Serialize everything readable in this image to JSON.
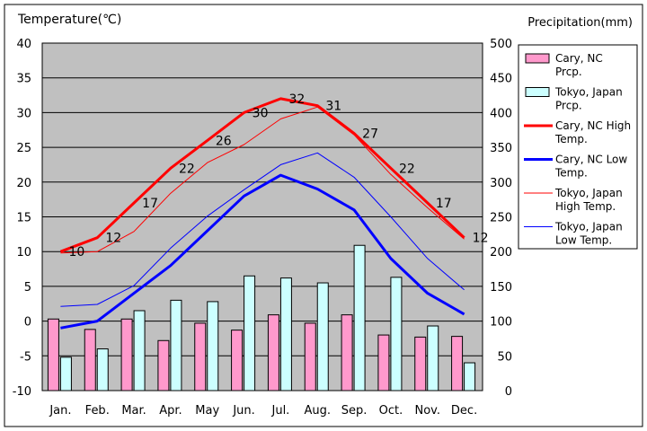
{
  "chart_data": {
    "type": "bar+line",
    "title": "",
    "ylabel_left": "Temperature(℃)",
    "ylabel_right": "Precipitation(mm)",
    "ylim_left": [
      -10,
      40
    ],
    "ylim_right": [
      0,
      500
    ],
    "left_ticks": [
      "40",
      "35",
      "30",
      "25",
      "20",
      "15",
      "10",
      "5",
      "0",
      "-5",
      "-10"
    ],
    "right_ticks": [
      "500",
      "450",
      "400",
      "350",
      "300",
      "250",
      "200",
      "150",
      "100",
      "50",
      "0"
    ],
    "categories": [
      "Jan.",
      "Feb.",
      "Mar.",
      "Apr.",
      "May",
      "Jun.",
      "Jul.",
      "Aug.",
      "Sep.",
      "Oct.",
      "Nov.",
      "Dec."
    ],
    "bars": [
      {
        "name": "Cary, NC Prcp.",
        "color": "#ff99cc",
        "values": [
          103,
          88,
          103,
          72,
          97,
          87,
          109,
          97,
          109,
          80,
          77,
          78
        ]
      },
      {
        "name": "Tokyo, Japan Prcp.",
        "color": "#ccffff",
        "values": [
          48,
          60,
          115,
          130,
          128,
          165,
          162,
          155,
          209,
          163,
          93,
          40
        ]
      }
    ],
    "lines": [
      {
        "name": "Cary, NC High Temp.",
        "color": "#ff0000",
        "width": 3,
        "values": [
          10,
          12,
          17,
          22,
          26,
          30,
          32,
          31,
          27,
          22,
          17,
          12
        ]
      },
      {
        "name": "Cary, NC Low Temp.",
        "color": "#0000ff",
        "width": 3,
        "values": [
          -1,
          0,
          4,
          8,
          13,
          18,
          21,
          19,
          16,
          9,
          4,
          1
        ]
      },
      {
        "name": "Tokyo, Japan High Temp.",
        "color": "#ff0000",
        "width": 1,
        "values": [
          9.8,
          10,
          12.9,
          18.4,
          22.8,
          25.4,
          29.1,
          30.8,
          26.8,
          21.1,
          16.3,
          11.8
        ]
      },
      {
        "name": "Tokyo, Japan Low Temp.",
        "color": "#0000ff",
        "width": 1,
        "values": [
          2.1,
          2.4,
          5.1,
          10.5,
          15.1,
          18.9,
          22.5,
          24.2,
          20.7,
          15,
          9,
          4.5
        ]
      }
    ],
    "high_labels": [
      "10",
      "12",
      "17",
      "22",
      "26",
      "30",
      "32",
      "31",
      "27",
      "22",
      "17",
      "12"
    ],
    "legend_position": "right",
    "legend": [
      {
        "line1": "Cary, NC",
        "line2": "Prcp.",
        "kind": "box",
        "color": "#ff99cc"
      },
      {
        "line1": "Tokyo, Japan",
        "line2": "Prcp.",
        "kind": "box",
        "color": "#ccffff"
      },
      {
        "line1": "Cary, NC High",
        "line2": "Temp.",
        "kind": "line",
        "color": "#ff0000",
        "width": 3
      },
      {
        "line1": "Cary, NC Low",
        "line2": "Temp.",
        "kind": "line",
        "color": "#0000ff",
        "width": 3
      },
      {
        "line1": "Tokyo, Japan",
        "line2": "High Temp.",
        "kind": "line",
        "color": "#ff0000",
        "width": 1
      },
      {
        "line1": "Tokyo, Japan",
        "line2": "Low Temp.",
        "kind": "line",
        "color": "#0000ff",
        "width": 1
      }
    ],
    "plot_background": "#c0c0c0",
    "grid": true
  }
}
